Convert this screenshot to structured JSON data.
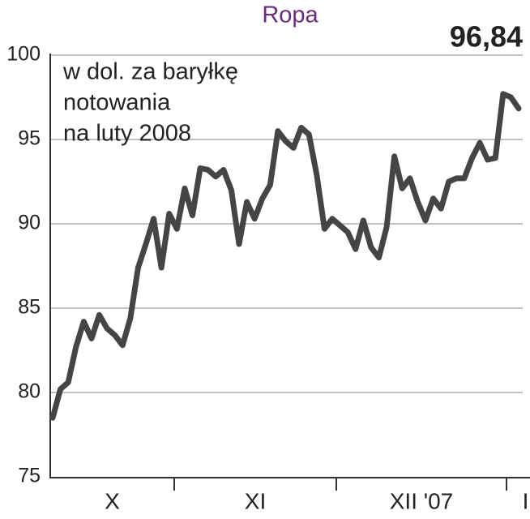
{
  "chart_data": {
    "type": "line",
    "title": "Ropa",
    "subtitle": [
      "w dol. za baryłkę",
      "notowania",
      "na luty 2008"
    ],
    "months": [
      "X",
      "XI",
      "XII '07",
      "I"
    ],
    "values": [
      78.5,
      80.2,
      80.6,
      82.7,
      84.2,
      83.2,
      84.6,
      83.8,
      83.4,
      82.8,
      84.4,
      87.4,
      88.8,
      90.3,
      87.4,
      90.6,
      89.7,
      92.1,
      90.5,
      93.3,
      93.2,
      92.8,
      93.2,
      92.0,
      88.8,
      91.3,
      90.3,
      91.5,
      92.3,
      95.5,
      94.9,
      94.5,
      95.7,
      95.3,
      92.9,
      89.7,
      90.3,
      89.9,
      89.5,
      88.5,
      90.2,
      88.6,
      88.0,
      89.8,
      94.0,
      92.1,
      92.7,
      91.3,
      90.2,
      91.5,
      90.9,
      92.5,
      92.7,
      92.7,
      93.9,
      94.8,
      93.8,
      93.9,
      97.7,
      97.5,
      96.84
    ],
    "value_labels": [
      null,
      null,
      null,
      null,
      null,
      null,
      null,
      null,
      null,
      null,
      null,
      null,
      null,
      null,
      null,
      null,
      null,
      null,
      null,
      null,
      null,
      null,
      null,
      null,
      null,
      null,
      null,
      null,
      null,
      null,
      null,
      null,
      null,
      null,
      null,
      null,
      null,
      null,
      null,
      null,
      null,
      null,
      null,
      null,
      null,
      null,
      null,
      null,
      null,
      null,
      null,
      null,
      null,
      null,
      null,
      null,
      null,
      null,
      null,
      null,
      "96,84"
    ],
    "color": "#454545",
    "ylim": [
      75,
      100
    ],
    "yticks": [
      75,
      80,
      85,
      90,
      95,
      100
    ],
    "grid": true
  }
}
